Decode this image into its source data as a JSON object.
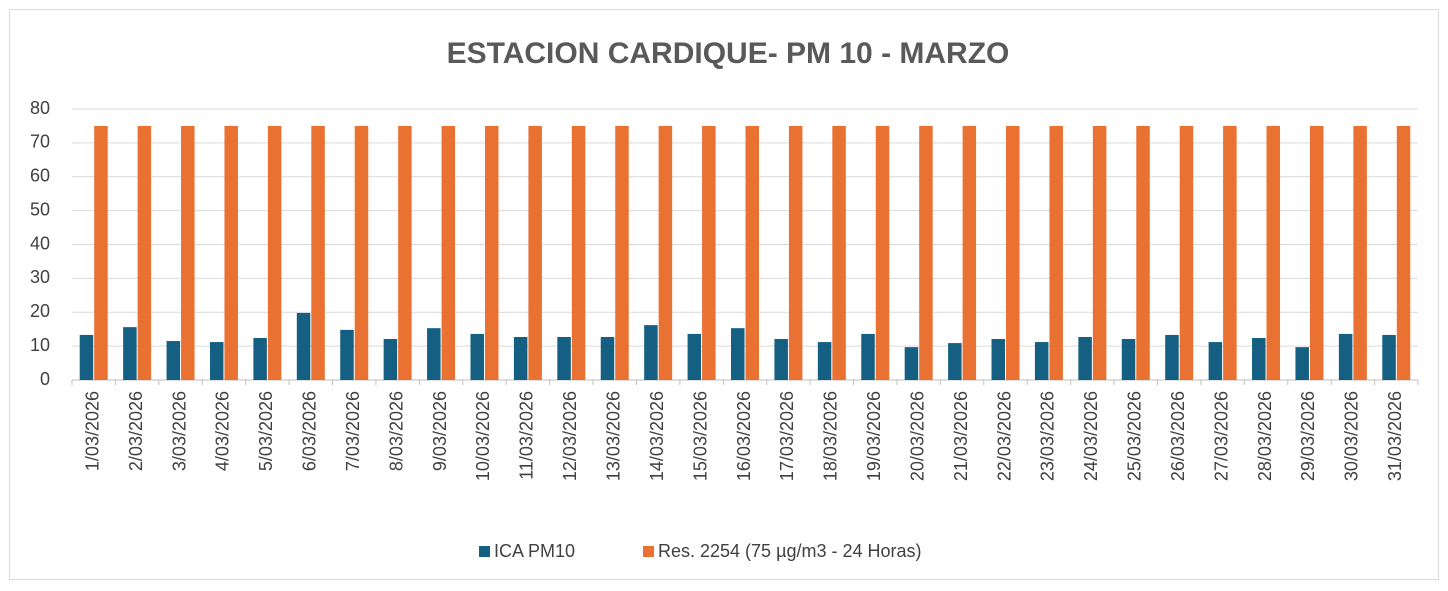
{
  "chart_data": {
    "type": "bar",
    "title": "ESTACION CARDIQUE- PM 10 - MARZO",
    "categories": [
      "1/03/2026",
      "2/03/2026",
      "3/03/2026",
      "4/03/2026",
      "5/03/2026",
      "6/03/2026",
      "7/03/2026",
      "8/03/2026",
      "9/03/2026",
      "10/03/2026",
      "11/03/2026",
      "12/03/2026",
      "13/03/2026",
      "14/03/2026",
      "15/03/2026",
      "16/03/2026",
      "17/03/2026",
      "18/03/2026",
      "19/03/2026",
      "20/03/2026",
      "21/03/2026",
      "22/03/2026",
      "23/03/2026",
      "24/03/2026",
      "25/03/2026",
      "26/03/2026",
      "27/03/2026",
      "28/03/2026",
      "29/03/2026",
      "30/03/2026",
      "31/03/2026"
    ],
    "series": [
      {
        "name": "ICA PM10",
        "color": "#156082",
        "values": [
          13.3,
          15.6,
          11.5,
          11.2,
          12.4,
          19.8,
          14.8,
          12.1,
          15.3,
          13.6,
          12.7,
          12.7,
          12.7,
          16.2,
          13.6,
          15.3,
          12.1,
          11.2,
          13.6,
          9.7,
          10.9,
          12.1,
          11.2,
          12.7,
          12.1,
          13.3,
          11.2,
          12.4,
          9.7,
          13.6,
          13.3
        ]
      },
      {
        "name": "Res. 2254 (75 µg/m3 - 24 Horas)",
        "color": "#E97132",
        "values": [
          75,
          75,
          75,
          75,
          75,
          75,
          75,
          75,
          75,
          75,
          75,
          75,
          75,
          75,
          75,
          75,
          75,
          75,
          75,
          75,
          75,
          75,
          75,
          75,
          75,
          75,
          75,
          75,
          75,
          75,
          75
        ]
      }
    ],
    "ylim": [
      0,
      80
    ],
    "yticks": [
      0,
      10,
      20,
      30,
      40,
      50,
      60,
      70,
      80
    ],
    "grid": true,
    "legend": "bottom"
  }
}
